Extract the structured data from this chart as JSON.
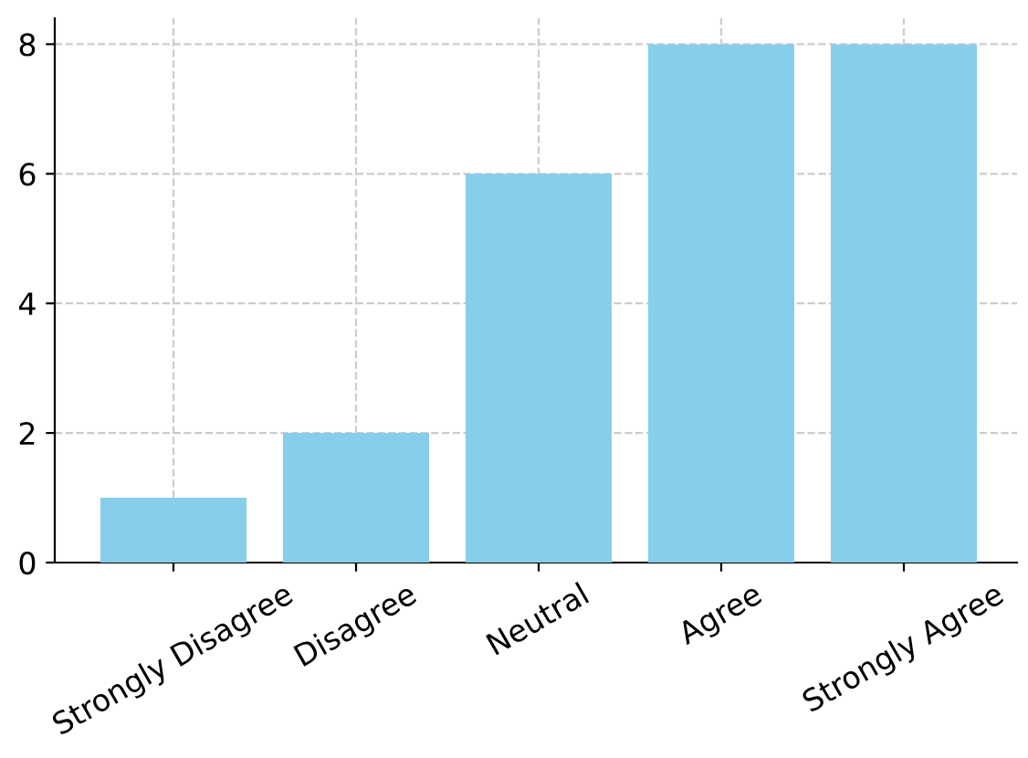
{
  "chart_data": {
    "type": "bar",
    "categories": [
      "Strongly Disagree",
      "Disagree",
      "Neutral",
      "Agree",
      "Strongly Agree"
    ],
    "values": [
      1,
      2,
      6,
      8,
      8
    ],
    "color": "#87ceeb",
    "ylim": [
      0,
      8.4
    ],
    "yticks": [
      0,
      2,
      4,
      6,
      8
    ],
    "grid": true,
    "line_style": "dashed"
  }
}
